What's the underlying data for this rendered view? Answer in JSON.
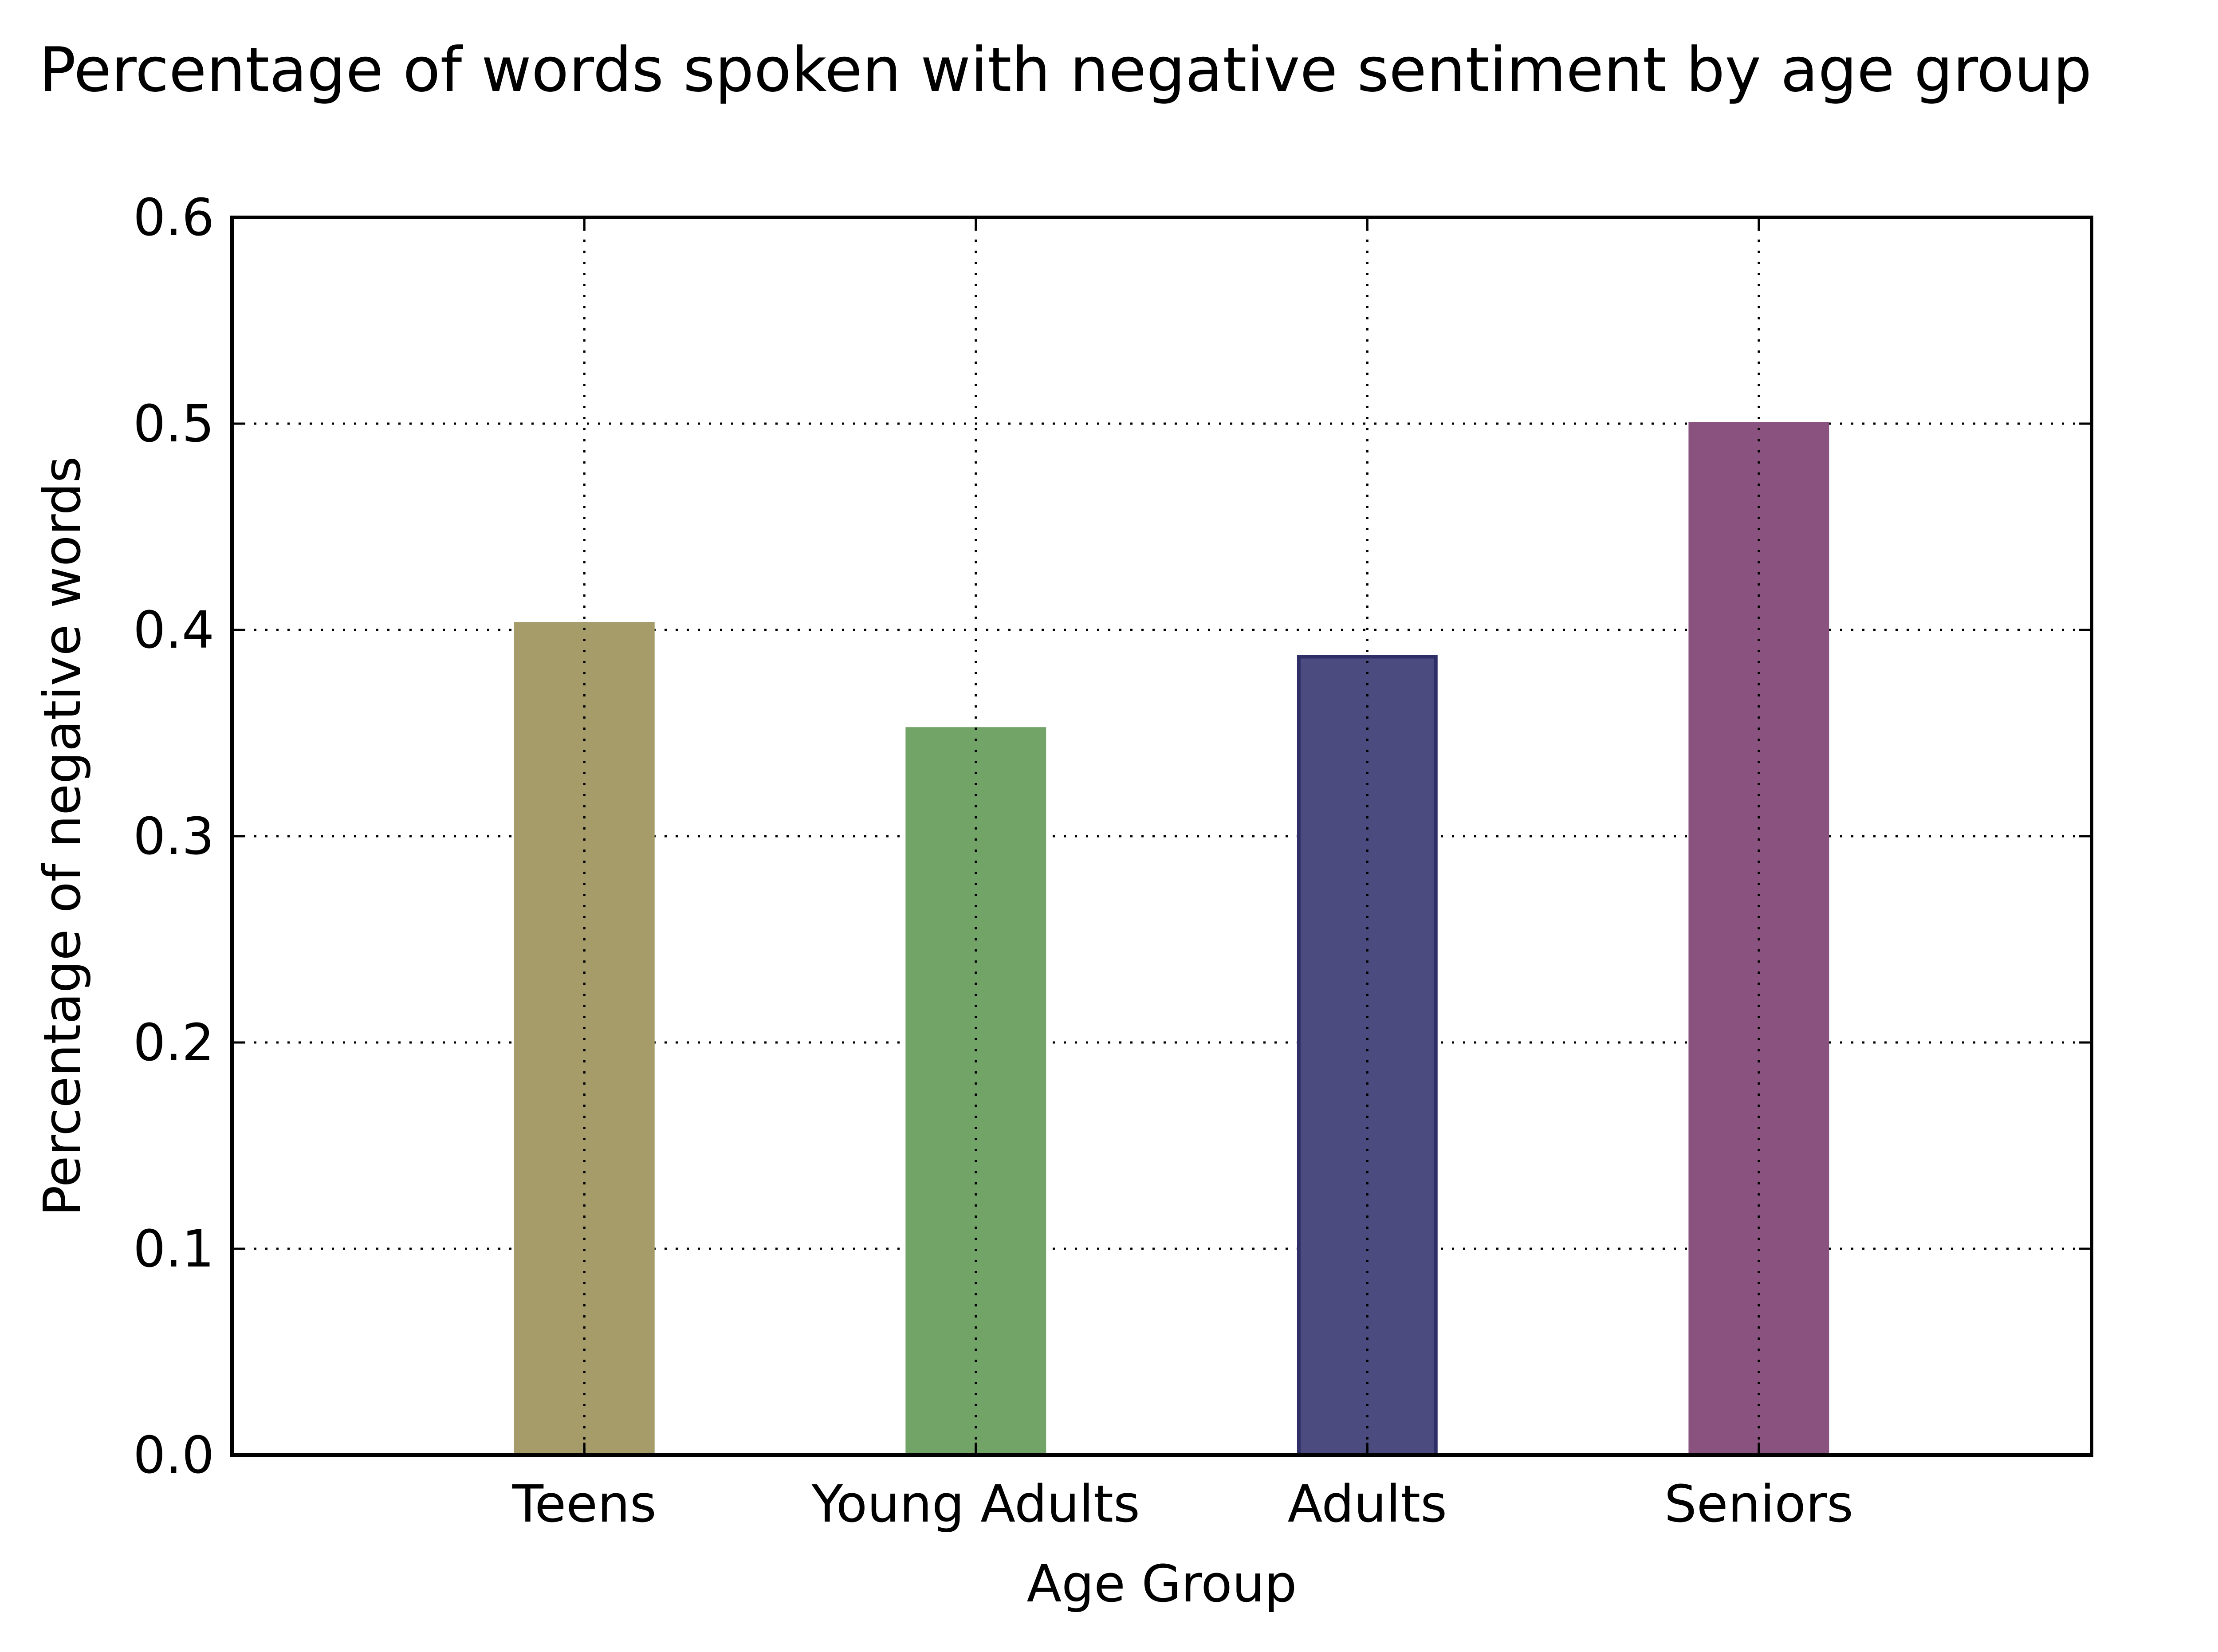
{
  "chart_data": {
    "type": "bar",
    "title": "Percentage of words spoken with negative sentiment by age group",
    "xlabel": "Age Group",
    "ylabel": "Percentage of negative words",
    "categories": [
      "Teens",
      "Young Adults",
      "Adults",
      "Seniors"
    ],
    "values": [
      0.403,
      0.352,
      0.387,
      0.5
    ],
    "bar_colors": [
      "#a59c6a",
      "#72a468",
      "#4b4b80",
      "#8a527f"
    ],
    "bar_edge_colors": [
      "#a59c6a",
      "#72a468",
      "#2f2f68",
      "#8a527f"
    ],
    "ylim": [
      0,
      0.6
    ],
    "yticks": [
      "0.0",
      "0.1",
      "0.2",
      "0.3",
      "0.4",
      "0.5",
      "0.6"
    ],
    "ytick_values": [
      0,
      0.1,
      0.2,
      0.3,
      0.4,
      0.5,
      0.6
    ],
    "grid": true,
    "grid_style": "dotted"
  }
}
